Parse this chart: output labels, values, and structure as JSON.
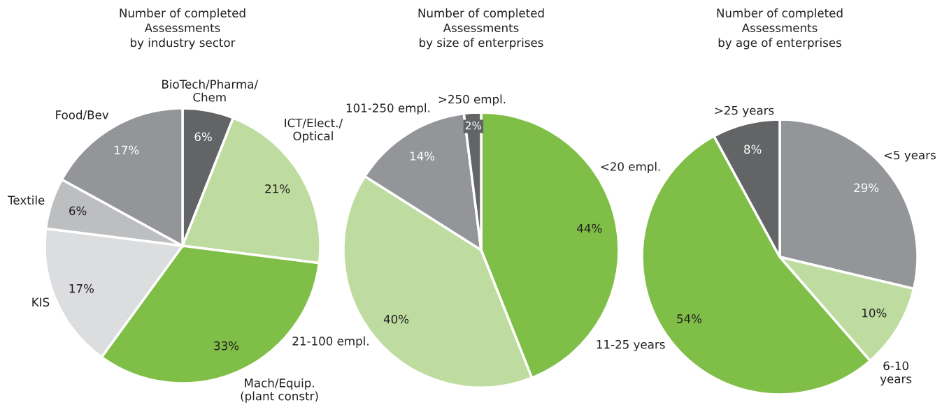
{
  "chart_data": [
    {
      "type": "pie",
      "title": "Number of completed\nAssessments\nby industry sector",
      "categories": [
        "BioTech/Pharma/\nChem",
        "ICT/Elect./\nOptical",
        "Mach/Equip.\n(plant constr)",
        "KIS",
        "Textile",
        "Food/Bev"
      ],
      "values": [
        6,
        21,
        33,
        17,
        6,
        17
      ],
      "colors": [
        "#636466",
        "#bedc9f",
        "#80bf47",
        "#dcdddf",
        "#bcbec0",
        "#939598"
      ],
      "value_labels": [
        "6%",
        "21%",
        "33%",
        "17%",
        "6%",
        "17%"
      ]
    },
    {
      "type": "pie",
      "title": "Number of completed\nAssessments\nby size of enterprises",
      "categories": [
        "<20 empl.",
        "21-100 empl.",
        "101-250 empl.",
        ">250 empl."
      ],
      "values": [
        44,
        40,
        14,
        2
      ],
      "colors": [
        "#80bf47",
        "#bedc9f",
        "#939598",
        "#636466"
      ],
      "value_labels": [
        "44%",
        "40%",
        "14%",
        "2%"
      ]
    },
    {
      "type": "pie",
      "title": "Number of completed\nAssessments\nby age of enterprises",
      "categories": [
        "<5 years",
        "6-10\nyears",
        "11-25 years",
        ">25 years"
      ],
      "values": [
        29,
        10,
        54,
        8
      ],
      "colors": [
        "#939598",
        "#bedc9f",
        "#80bf47",
        "#636466"
      ],
      "value_labels": [
        "29%",
        "10%",
        "54%",
        "8%"
      ]
    }
  ]
}
